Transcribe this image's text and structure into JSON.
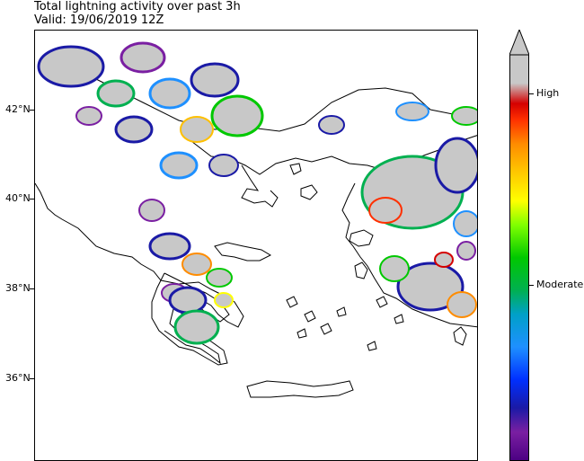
{
  "title": {
    "line1": "Total lightning activity over past 3h",
    "line2": "Valid: 19/06/2019 12Z"
  },
  "latitude_labels": [
    {
      "label": "42°N",
      "value": 42
    },
    {
      "label": "40°N",
      "value": 40
    },
    {
      "label": "38°N",
      "value": 38
    },
    {
      "label": "36°N",
      "value": 36
    }
  ],
  "colorbar": {
    "labels": [
      {
        "label": "High",
        "level": 0.88
      },
      {
        "label": "Moderate",
        "level": 0.42
      }
    ],
    "colors": [
      "#4b0082",
      "#7a1fa2",
      "#1a1aa6",
      "#0030ff",
      "#1e90ff",
      "#00a0c8",
      "#00b050",
      "#00c800",
      "#7fff00",
      "#ffff00",
      "#ffc000",
      "#ff8c00",
      "#ff3000",
      "#d40000",
      "#c8c8c8"
    ],
    "extend_color": "#c8c8c8"
  },
  "activity_gray": "#c8c8c8"
}
